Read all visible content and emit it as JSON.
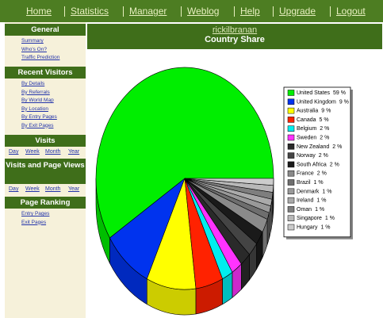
{
  "nav": [
    "Home",
    "Statistics",
    "Manager",
    "Weblog",
    "Help",
    "Upgrade",
    "Logout"
  ],
  "sidebar": [
    {
      "title": "General",
      "links": [
        "Summary",
        "Who's On?",
        "Traffic Prediction"
      ]
    },
    {
      "title": "Recent Visitors",
      "links": [
        "By Details",
        "By Referrals",
        "By World Map",
        "By Location",
        "By Entry Pages",
        "By Exit Pages"
      ]
    },
    {
      "title": "Visits",
      "links": [
        "Day",
        "Week",
        "Month",
        "Year"
      ]
    },
    {
      "title": "Visits and Page Views",
      "links": [
        "Day",
        "Week",
        "Month",
        "Year"
      ]
    },
    {
      "title": "Page Ranking",
      "links": [
        "Entry Pages",
        "Exit Pages"
      ]
    }
  ],
  "header": {
    "user": "rickilbranan",
    "title": "Country Share"
  },
  "chart_data": {
    "type": "pie",
    "categories": [
      "United States",
      "United Kingdom",
      "Australia",
      "Canada",
      "Belgium",
      "Sweden",
      "New Zealand",
      "Norway",
      "South Africa",
      "France",
      "Brazil",
      "Denmark",
      "Ireland",
      "Oman",
      "Singapore",
      "Hungary"
    ],
    "values": [
      59,
      9,
      9,
      5,
      2,
      2,
      2,
      2,
      2,
      2,
      1,
      1,
      1,
      1,
      1,
      1
    ],
    "value_labels": [
      "59 %",
      "9 %",
      "9 %",
      "5 %",
      "2 %",
      "2 %",
      "2 %",
      "2 %",
      "2 %",
      "2 %",
      "1 %",
      "1 %",
      "1 %",
      "1 %",
      "1 %",
      "1 %"
    ],
    "colors": [
      "#00ee00",
      "#0033ee",
      "#ffff00",
      "#ff2200",
      "#00eeee",
      "#ff33ff",
      "#2a2a2a",
      "#444444",
      "#1a1a1a",
      "#8a8a8a",
      "#6e6e6e",
      "#999999",
      "#aaaaaa",
      "#7e7e7e",
      "#b8b8b8",
      "#cccccc"
    ],
    "legend": "right"
  }
}
